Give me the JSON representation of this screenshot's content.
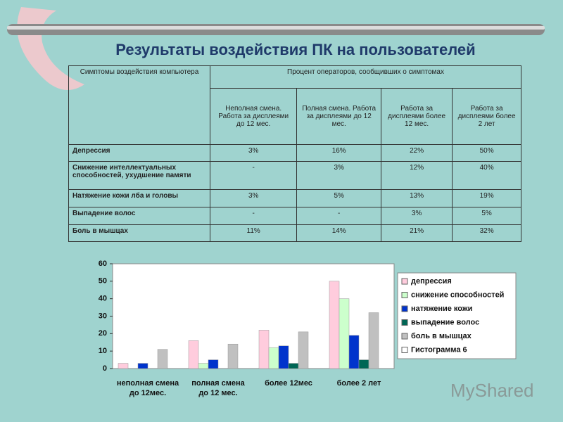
{
  "title": "Результаты воздействия ПК на пользователей",
  "table": {
    "corner": "Симптомы воздействия компьютера",
    "group": "Процент операторов, сообщивших о симптомах",
    "subheaders": [
      "Неполная смена. Работа за дисплеями до 12 мес.",
      "Полная смена. Работа за дисплеями до 12 мес.",
      "Работа за дисплеями более 12 мес.",
      "Работа за дисплеями более 2 лет"
    ],
    "rows": [
      [
        "Депрессия",
        "3%",
        "16%",
        "22%",
        "50%"
      ],
      [
        "Снижение интеллектуальных способностей, ухудшение памяти",
        "-",
        "3%",
        "12%",
        "40%"
      ],
      [
        "Натяжение кожи лба и головы",
        "3%",
        "5%",
        "13%",
        "19%"
      ],
      [
        "Выпадение волос",
        "-",
        "-",
        "3%",
        "5%"
      ],
      [
        "Боль в мышцах",
        "11%",
        "14%",
        "21%",
        "32%"
      ]
    ]
  },
  "chart_data": {
    "type": "bar",
    "categories": [
      "неполная смена до 12мес.",
      "полная смена до 12 мес.",
      "более 12мес",
      "более 2 лет"
    ],
    "series": [
      {
        "name": "депрессия",
        "color": "#ffccdd",
        "values": [
          3,
          16,
          22,
          50
        ]
      },
      {
        "name": "снижение способностей",
        "color": "#ccffcc",
        "values": [
          null,
          3,
          12,
          40
        ]
      },
      {
        "name": "натяжение кожи",
        "color": "#0033cc",
        "values": [
          3,
          5,
          13,
          19
        ]
      },
      {
        "name": "выпадение волос",
        "color": "#006655",
        "values": [
          null,
          null,
          3,
          5
        ]
      },
      {
        "name": "боль в мышцах",
        "color": "#c0c0c0",
        "values": [
          11,
          14,
          21,
          32
        ]
      },
      {
        "name": "Гистограмма 6",
        "color": "#ffffff",
        "values": [
          null,
          null,
          null,
          null
        ]
      }
    ],
    "ylim": [
      0,
      60
    ],
    "yticks": [
      0,
      10,
      20,
      30,
      40,
      50,
      60
    ]
  },
  "watermark": "MyShared"
}
